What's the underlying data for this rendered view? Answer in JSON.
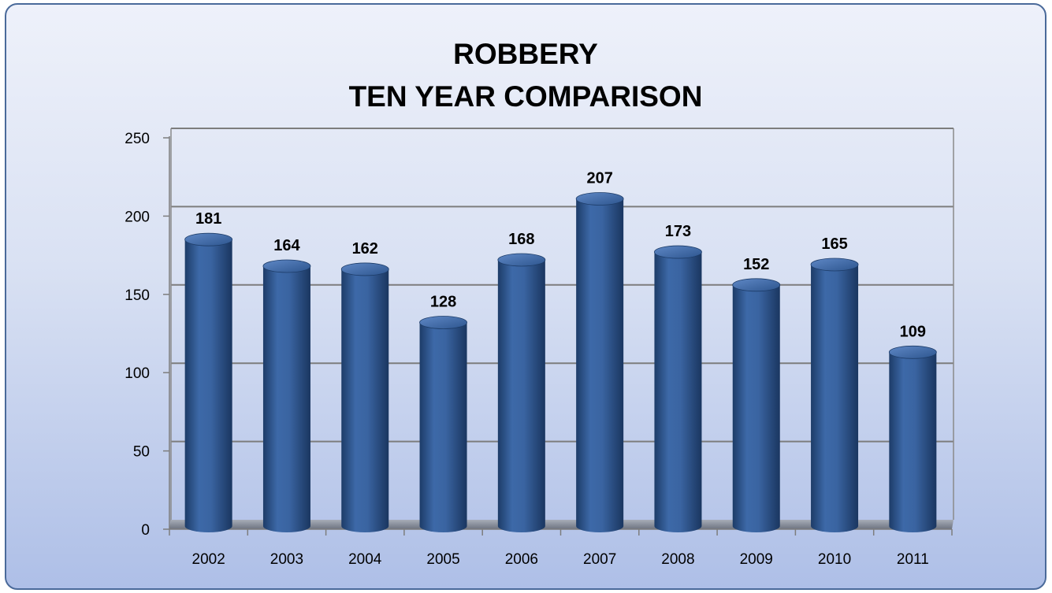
{
  "chart_data": {
    "type": "bar",
    "title": "ROBBERY",
    "subtitle": "TEN YEAR COMPARISON",
    "categories": [
      "2002",
      "2003",
      "2004",
      "2005",
      "2006",
      "2007",
      "2008",
      "2009",
      "2010",
      "2011"
    ],
    "values": [
      181,
      164,
      162,
      128,
      168,
      207,
      173,
      152,
      165,
      109
    ],
    "data_labels": [
      "181",
      "164",
      "162",
      "128",
      "168",
      "207",
      "173",
      "152",
      "165",
      "109"
    ],
    "ylim": [
      0,
      250
    ],
    "yticks": [
      0,
      50,
      100,
      150,
      200,
      250
    ],
    "ytick_labels": [
      "0",
      "50",
      "100",
      "150",
      "200",
      "250"
    ],
    "xlabel": "",
    "ylabel": "",
    "grid": true,
    "legend": "none",
    "style": "3d-cylinder",
    "bar_color": "#2e5a97"
  }
}
